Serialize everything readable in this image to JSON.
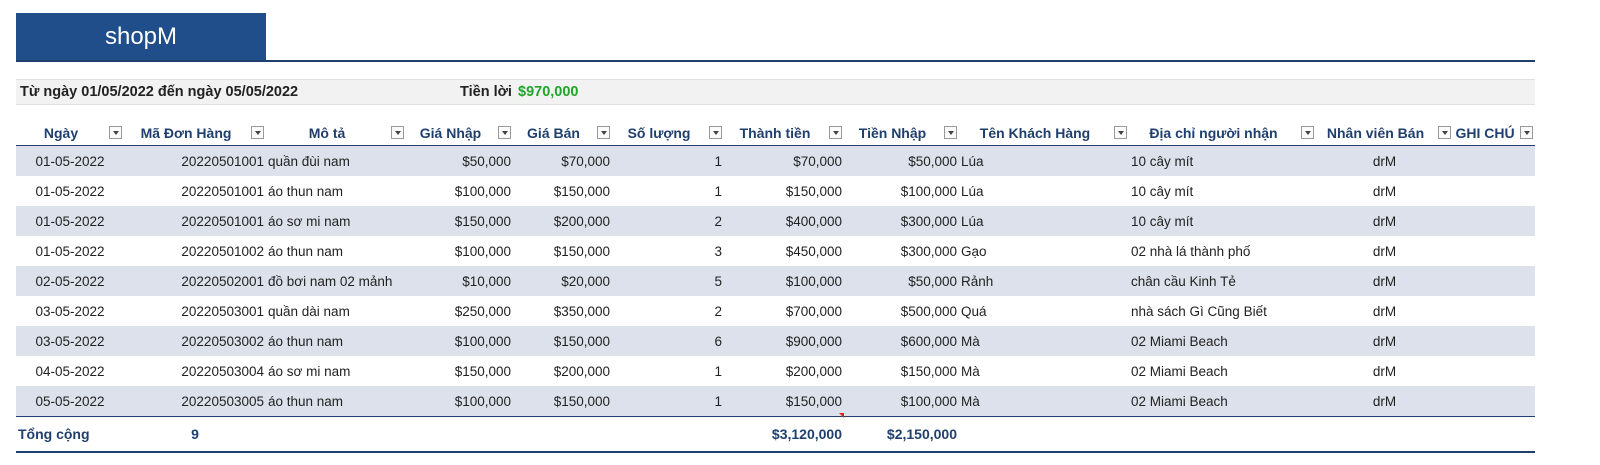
{
  "brand": {
    "title": "shopM"
  },
  "summary": {
    "date_range": "Từ ngày 01/05/2022 đến ngày 05/05/2022",
    "profit_label": "Tiền lời",
    "profit_value": "$970,000"
  },
  "table": {
    "headers": [
      "Ngày",
      "Mã Đơn Hàng",
      "Mô tả",
      "Giá Nhập",
      "Giá Bán",
      "Số lượng",
      "Thành tiền",
      "Tiền Nhập",
      "Tên Khách Hàng",
      "Địa chỉ người nhận",
      "Nhân viên Bán",
      "GHI CHÚ"
    ],
    "rows": [
      [
        "01-05-2022",
        "20220501001",
        "quần đùi nam",
        "$50,000",
        "$70,000",
        "1",
        "$70,000",
        "$50,000",
        "Lúa",
        "10 cây mít",
        "drM",
        ""
      ],
      [
        "01-05-2022",
        "20220501001",
        "áo thun nam",
        "$100,000",
        "$150,000",
        "1",
        "$150,000",
        "$100,000",
        "Lúa",
        "10 cây mít",
        "drM",
        ""
      ],
      [
        "01-05-2022",
        "20220501001",
        "áo sơ mi nam",
        "$150,000",
        "$200,000",
        "2",
        "$400,000",
        "$300,000",
        "Lúa",
        "10 cây mít",
        "drM",
        ""
      ],
      [
        "01-05-2022",
        "20220501002",
        "áo thun nam",
        "$100,000",
        "$150,000",
        "3",
        "$450,000",
        "$300,000",
        "Gạo",
        "02 nhà lá thành phố",
        "drM",
        ""
      ],
      [
        "02-05-2022",
        "20220502001",
        "đồ bơi nam 02 mảnh",
        "$10,000",
        "$20,000",
        "5",
        "$100,000",
        "$50,000",
        "Rảnh",
        "chân cầu Kinh Tẻ",
        "drM",
        ""
      ],
      [
        "03-05-2022",
        "20220503001",
        "quần dài nam",
        "$250,000",
        "$350,000",
        "2",
        "$700,000",
        "$500,000",
        "Quá",
        "nhà sách Gì Cũng Biết",
        "drM",
        ""
      ],
      [
        "03-05-2022",
        "20220503002",
        "áo thun nam",
        "$100,000",
        "$150,000",
        "6",
        "$900,000",
        "$600,000",
        "Mà",
        "02 Miami Beach",
        "drM",
        ""
      ],
      [
        "04-05-2022",
        "20220503004",
        "áo sơ mi nam",
        "$150,000",
        "$200,000",
        "1",
        "$200,000",
        "$150,000",
        "Mà",
        "02 Miami Beach",
        "drM",
        ""
      ],
      [
        "05-05-2022",
        "20220503005",
        "áo thun nam",
        "$100,000",
        "$150,000",
        "1",
        "$150,000",
        "$100,000",
        "Mà",
        "02 Miami Beach",
        "drM",
        ""
      ]
    ],
    "totals": {
      "label": "Tổng cộng",
      "order_count": "9",
      "total_amount": "$3,120,000",
      "total_cost": "$2,150,000"
    }
  }
}
